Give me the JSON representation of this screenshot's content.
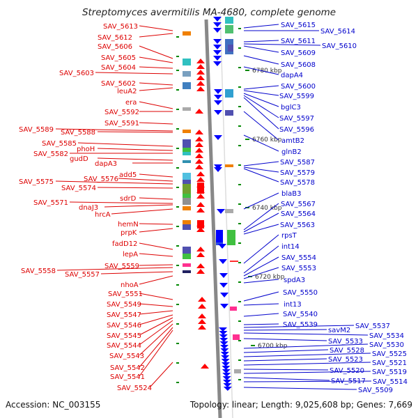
{
  "title": "Streptomyces avermitilis MA-4680, complete genome",
  "footer": {
    "accession": "Accession: NC_003155",
    "topology": "Topology: linear; Length: 9,025,608 bp; Genes: 7,669"
  },
  "colors": {
    "left_labels": "#dd0000",
    "right_labels": "#0000cc",
    "left_arrows": "#ff0000",
    "right_arrows": "#0000ff",
    "axis": "#888888",
    "kbp_ticks": "#008800"
  },
  "kbp_marks": [
    "6780 kbp",
    "6760 kbp",
    "6740 kbp",
    "6720 kbp",
    "6700 kbp"
  ],
  "left_genes": [
    "SAV_5613",
    "SAV_5612",
    "SAV_5606",
    "SAV_5605",
    "SAV_5604",
    "SAV_5603",
    "SAV_5602",
    "leuA2",
    "era",
    "SAV_5592",
    "SAV_5591",
    "SAV_5589",
    "SAV_5588",
    "SAV_5585",
    "phoH",
    "SAV_5582",
    "gudD",
    "dapA3",
    "add5",
    "SAV_5576",
    "SAV_5575",
    "SAV_5574",
    "sdrD",
    "SAV_5571",
    "dnaJ3",
    "hrcA",
    "hemN",
    "prpK",
    "fadD12",
    "lepA",
    "SAV_5559",
    "SAV_5558",
    "SAV_5557",
    "nhoA",
    "SAV_5551",
    "SAV_5549",
    "SAV_5547",
    "SAV_5546",
    "SAV_5545",
    "SAV_5544",
    "SAV_5543",
    "SAV_5542",
    "SAV_5541",
    "SAV_5524"
  ],
  "right_genes": [
    "SAV_5615",
    "SAV_5614",
    "SAV_5611",
    "SAV_5610",
    "SAV_5609",
    "SAV_5608",
    "dapA4",
    "SAV_5600",
    "SAV_5599",
    "bglC3",
    "SAV_5597",
    "SAV_5596",
    "amtB2",
    "glnB2",
    "SAV_5587",
    "SAV_5579",
    "SAV_5578",
    "blaB3",
    "SAV_5567",
    "SAV_5564",
    "SAV_5563",
    "rpsT",
    "int14",
    "SAV_5554",
    "SAV_5553",
    "spdA3",
    "SAV_5550",
    "int13",
    "SAV_5540",
    "SAV_5539",
    "SAV_5537",
    "savM2",
    "SAV_5534",
    "SAV_5533",
    "SAV_5530",
    "SAV_5528",
    "SAV_5525",
    "SAV_5523",
    "SAV_5521",
    "SAV_5520",
    "SAV_5519",
    "SAV_5517",
    "SAV_5514",
    "SAV_5509"
  ]
}
